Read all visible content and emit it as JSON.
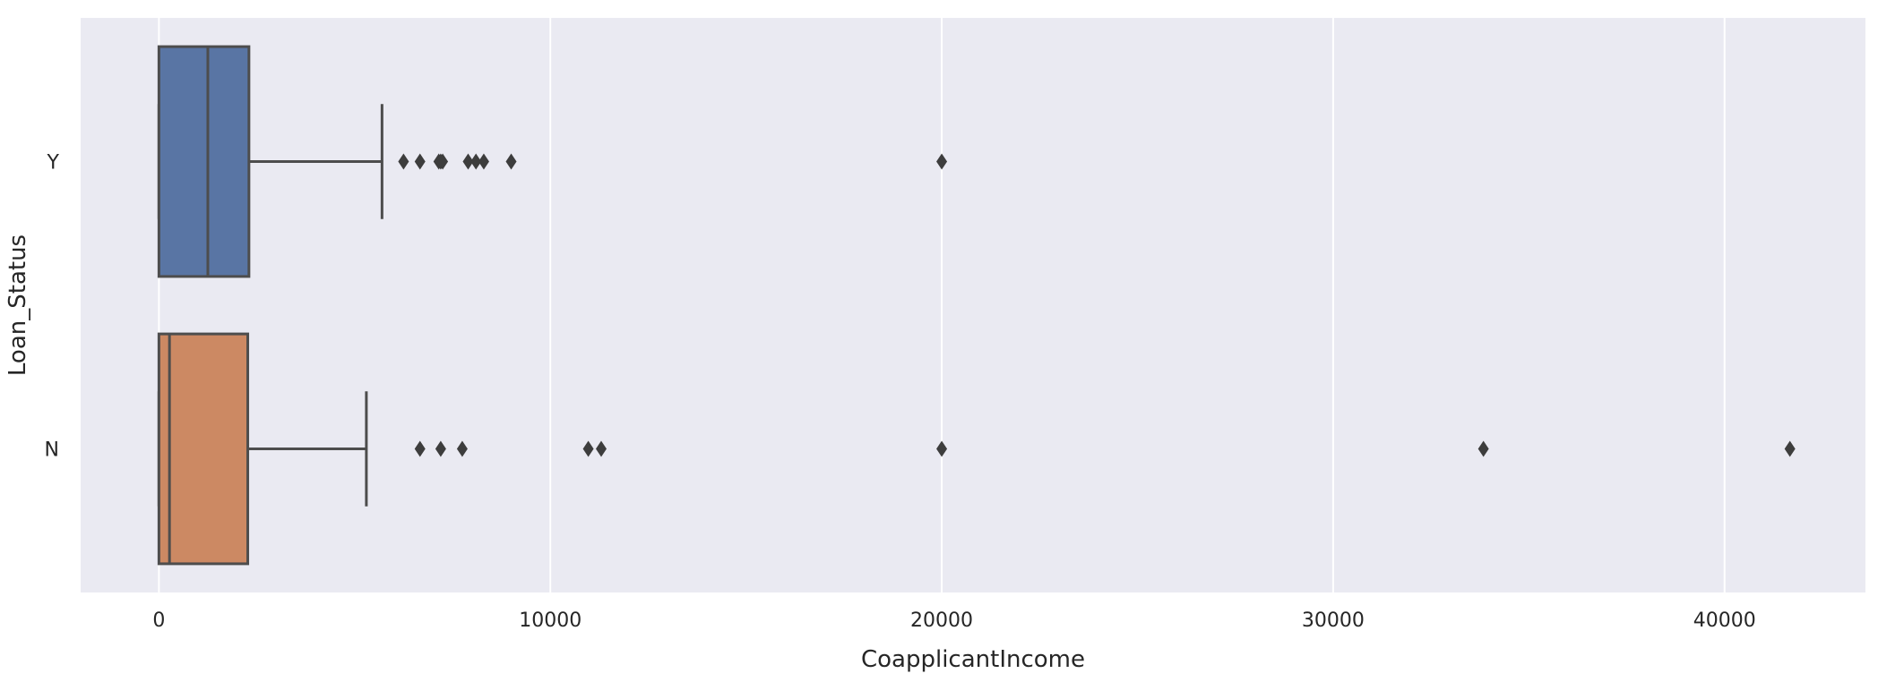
{
  "chart_data": {
    "type": "box",
    "orientation": "horizontal",
    "xlabel": "CoapplicantIncome",
    "ylabel": "Loan_Status",
    "xlim": [
      -2000,
      43600
    ],
    "xticks": [
      0,
      10000,
      20000,
      30000,
      40000
    ],
    "grid": true,
    "background": "#eaeaf2",
    "series": [
      {
        "category": "Y",
        "color": "#5975a4",
        "q1": 0,
        "median": 1250,
        "q3": 2300,
        "whisker_low": 0,
        "whisker_high": 5700,
        "outliers": [
          6250,
          6670,
          7150,
          7200,
          7250,
          7900,
          8100,
          8300,
          9000,
          20000
        ]
      },
      {
        "category": "N",
        "color": "#cc8963",
        "q1": 0,
        "median": 270,
        "q3": 2270,
        "whisker_low": 0,
        "whisker_high": 5300,
        "outliers": [
          6670,
          7200,
          7750,
          10970,
          11300,
          20000,
          33840,
          41670
        ]
      }
    ]
  }
}
